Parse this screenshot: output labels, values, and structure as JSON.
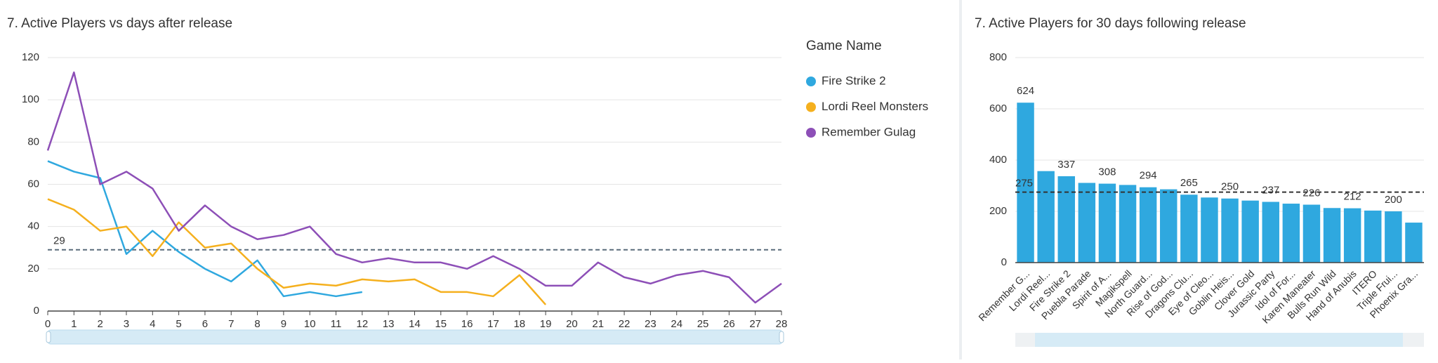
{
  "chart_data": [
    {
      "type": "line",
      "title": "7. Active Players vs days after release",
      "legend_title": "Game Name",
      "legend": "right",
      "grid": true,
      "x": [
        0,
        1,
        2,
        3,
        4,
        5,
        6,
        7,
        8,
        9,
        10,
        11,
        12,
        13,
        14,
        15,
        16,
        17,
        18,
        19,
        20,
        21,
        22,
        23,
        24,
        25,
        26,
        27,
        28
      ],
      "xlim": [
        0,
        28
      ],
      "xticks": [
        0,
        1,
        2,
        3,
        4,
        5,
        6,
        7,
        8,
        9,
        10,
        11,
        12,
        13,
        14,
        15,
        16,
        17,
        18,
        19,
        20,
        21,
        22,
        23,
        24,
        25,
        26,
        27,
        28
      ],
      "ylim": [
        0,
        120
      ],
      "yticks": [
        0,
        20,
        40,
        60,
        80,
        100,
        120
      ],
      "reference_line": {
        "value": 29
      },
      "series": [
        {
          "name": "Fire Strike 2",
          "color": "#2fa8df",
          "values": [
            71,
            66,
            63,
            27,
            38,
            28,
            20,
            14,
            24,
            7,
            9,
            7,
            9,
            null,
            null,
            null,
            null,
            null,
            null,
            null,
            null,
            null,
            null,
            null,
            null,
            null,
            null,
            null,
            null
          ]
        },
        {
          "name": "Lordi Reel Monsters",
          "color": "#f5b01e",
          "values": [
            53,
            48,
            38,
            40,
            26,
            42,
            30,
            32,
            20,
            11,
            13,
            12,
            15,
            14,
            15,
            9,
            9,
            7,
            17,
            3,
            null,
            null,
            null,
            null,
            null,
            null,
            null,
            null,
            null
          ]
        },
        {
          "name": "Remember Gulag",
          "color": "#8d4fb7",
          "values": [
            76,
            113,
            60,
            66,
            58,
            38,
            50,
            40,
            34,
            36,
            40,
            27,
            23,
            25,
            23,
            23,
            20,
            26,
            20,
            12,
            12,
            23,
            16,
            13,
            17,
            19,
            16,
            4,
            13
          ]
        }
      ]
    },
    {
      "type": "bar",
      "title": "7. Active Players for 30 days following release",
      "color": "#2fa8df",
      "grid": true,
      "categories": [
        "Remember G...",
        "Lordi Reel...",
        "Fire Strike 2",
        "Puebla Parade",
        "Spirit of A...",
        "Magikspell",
        "North Guard...",
        "Rise of God...",
        "Dragons Clu...",
        "Eye of Cleo...",
        "Goblin Heis...",
        "Clover Gold",
        "Jurassic Party",
        "Idol of For...",
        "Karen Maneater",
        "Bulls Run Wild",
        "Hand of Anubis",
        "ITERO",
        "Triple Frui...",
        "Phoenix Gra..."
      ],
      "values": [
        624,
        357,
        337,
        311,
        308,
        303,
        294,
        286,
        265,
        254,
        250,
        242,
        237,
        230,
        226,
        213,
        212,
        203,
        200,
        156
      ],
      "ylim": [
        0,
        800
      ],
      "yticks": [
        0,
        200,
        400,
        600,
        800
      ],
      "reference_line": {
        "value": 275
      }
    }
  ]
}
